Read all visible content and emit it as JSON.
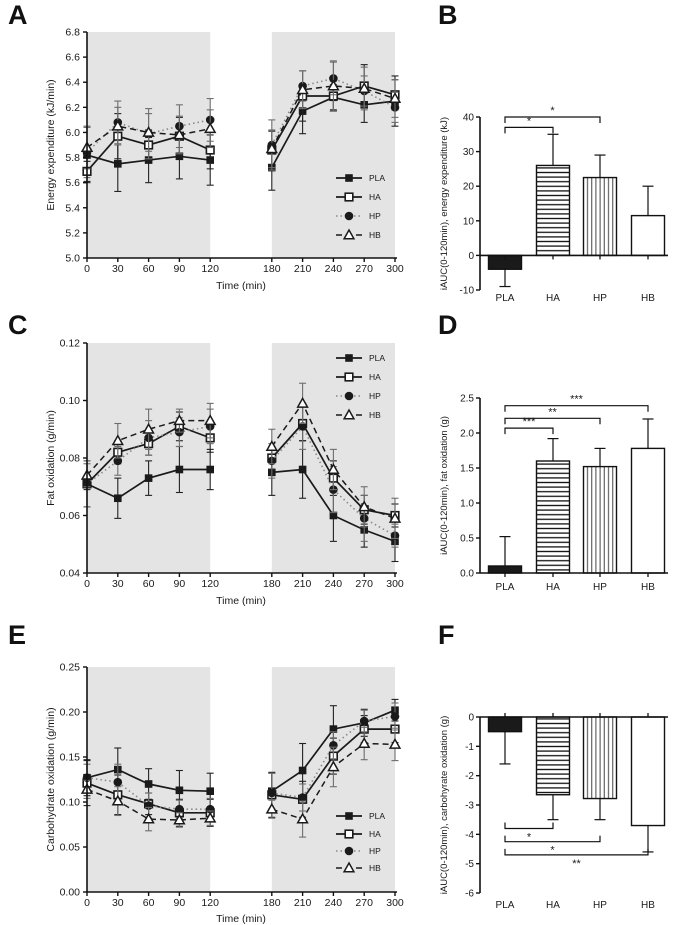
{
  "figure_title": "",
  "panel_letters": [
    "A",
    "B",
    "C",
    "D",
    "E",
    "F"
  ],
  "colors": {
    "line_black": "#1a1a1a",
    "line_gray": "#8a8a8a",
    "band_gray": "#e4e4e4",
    "bar_black": "#1a1a1a",
    "white": "#ffffff"
  },
  "chart_data": [
    {
      "panel": "A",
      "type": "line",
      "x": [
        0,
        30,
        60,
        90,
        120,
        180,
        210,
        240,
        270,
        300
      ],
      "xlabel": "Time (min)",
      "ylabel": "Energy expenditure (kJ/min)",
      "ylim": [
        5.0,
        6.8
      ],
      "ystep": 0.2,
      "ydecimals": 1,
      "shaded_bands": [
        [
          0,
          120
        ],
        [
          180,
          300
        ]
      ],
      "legend_pos": "bottom-right",
      "series": [
        {
          "name": "PLA",
          "marker": "filled-square",
          "line": "solid",
          "values": [
            5.82,
            5.75,
            5.78,
            5.81,
            5.78,
            5.72,
            6.17,
            6.28,
            6.22,
            6.25
          ],
          "err": [
            0.22,
            0.22,
            0.18,
            0.18,
            0.2,
            0.18,
            0.18,
            0.1,
            0.14,
            0.2
          ]
        },
        {
          "name": "HA",
          "marker": "open-square",
          "line": "solid",
          "values": [
            5.69,
            5.97,
            5.9,
            5.97,
            5.86,
            5.86,
            6.29,
            6.29,
            6.37,
            6.3
          ],
          "err": [
            0.08,
            0.18,
            0.12,
            0.15,
            0.15,
            0.15,
            0.2,
            0.12,
            0.17,
            0.12
          ]
        },
        {
          "name": "HP",
          "marker": "filled-circle",
          "line": "dotted",
          "values": [
            5.84,
            6.08,
            5.99,
            6.05,
            6.1,
            5.9,
            6.37,
            6.43,
            6.33,
            6.2
          ],
          "err": [
            0.2,
            0.17,
            0.2,
            0.17,
            0.17,
            0.2,
            0.12,
            0.13,
            0.12,
            0.12
          ]
        },
        {
          "name": "HB",
          "marker": "open-triangle",
          "line": "dashed",
          "values": [
            5.88,
            6.05,
            6.0,
            5.98,
            6.03,
            5.87,
            6.34,
            6.37,
            6.35,
            6.27
          ],
          "err": [
            0.17,
            0.15,
            0.15,
            0.15,
            0.15,
            0.15,
            0.15,
            0.2,
            0.17,
            0.15
          ]
        }
      ]
    },
    {
      "panel": "B",
      "type": "bar",
      "categories": [
        "PLA",
        "HA",
        "HP",
        "HB"
      ],
      "values": [
        -4,
        26,
        22.5,
        11.5
      ],
      "errors": [
        5,
        9,
        6.5,
        8.5
      ],
      "patterns": [
        "solid-black",
        "hlines",
        "vlines",
        "open"
      ],
      "ylabel": "iAUC(0-120min), energy expenditure (kJ)",
      "ylim": [
        -10,
        40
      ],
      "ystep": 10,
      "ydecimals": 0,
      "sig_side": "above",
      "sig_brackets": [
        {
          "a": 0,
          "b": 1,
          "y": 37,
          "label": "*"
        },
        {
          "a": 0,
          "b": 2,
          "y": 40,
          "label": "*"
        }
      ]
    },
    {
      "panel": "C",
      "type": "line",
      "x": [
        0,
        30,
        60,
        90,
        120,
        180,
        210,
        240,
        270,
        300
      ],
      "xlabel": "Time (min)",
      "ylabel": "Fat oxidation (g/min)",
      "ylim": [
        0.04,
        0.12
      ],
      "ystep": 0.02,
      "ydecimals": 2,
      "shaded_bands": [
        [
          0,
          120
        ],
        [
          180,
          300
        ]
      ],
      "legend_pos": "top-right",
      "series": [
        {
          "name": "PLA",
          "marker": "filled-square",
          "line": "solid",
          "values": [
            0.071,
            0.066,
            0.073,
            0.076,
            0.076,
            0.075,
            0.076,
            0.06,
            0.055,
            0.051
          ],
          "err": [
            0.008,
            0.007,
            0.006,
            0.008,
            0.007,
            0.008,
            0.01,
            0.009,
            0.006,
            0.007
          ]
        },
        {
          "name": "HA",
          "marker": "open-square",
          "line": "solid",
          "values": [
            0.071,
            0.082,
            0.085,
            0.091,
            0.087,
            0.08,
            0.092,
            0.073,
            0.062,
            0.06
          ],
          "err": [
            0.002,
            0.004,
            0.004,
            0.005,
            0.005,
            0.004,
            0.006,
            0.006,
            0.005,
            0.004
          ]
        },
        {
          "name": "HP",
          "marker": "filled-circle",
          "line": "dotted",
          "values": [
            0.071,
            0.079,
            0.087,
            0.089,
            0.091,
            0.079,
            0.091,
            0.069,
            0.059,
            0.053
          ],
          "err": [
            0.008,
            0.005,
            0.006,
            0.005,
            0.006,
            0.006,
            0.008,
            0.008,
            0.008,
            0.004
          ]
        },
        {
          "name": "HB",
          "marker": "open-triangle",
          "line": "dashed",
          "values": [
            0.074,
            0.086,
            0.09,
            0.093,
            0.093,
            0.084,
            0.099,
            0.076,
            0.063,
            0.059
          ],
          "err": [
            0.004,
            0.006,
            0.007,
            0.004,
            0.006,
            0.006,
            0.007,
            0.007,
            0.007,
            0.007
          ]
        }
      ]
    },
    {
      "panel": "D",
      "type": "bar",
      "categories": [
        "PLA",
        "HA",
        "HP",
        "HB"
      ],
      "values": [
        0.1,
        1.6,
        1.52,
        1.78
      ],
      "errors": [
        0.42,
        0.32,
        0.26,
        0.42
      ],
      "patterns": [
        "solid-black",
        "hlines",
        "vlines",
        "open"
      ],
      "ylabel": "iAUC(0-120min), fat oxidation (g)",
      "ylim": [
        0,
        2.5
      ],
      "ystep": 0.5,
      "ydecimals": 1,
      "sig_side": "above",
      "sig_brackets": [
        {
          "a": 0,
          "b": 1,
          "y": 2.07,
          "label": "***"
        },
        {
          "a": 0,
          "b": 2,
          "y": 2.21,
          "label": "**"
        },
        {
          "a": 0,
          "b": 3,
          "y": 2.39,
          "label": "***"
        }
      ]
    },
    {
      "panel": "E",
      "type": "line",
      "x": [
        0,
        30,
        60,
        90,
        120,
        180,
        210,
        240,
        270,
        300
      ],
      "xlabel": "Time (min)",
      "ylabel": "Carbohydrate oxidation (g/min)",
      "ylim": [
        0.0,
        0.25
      ],
      "ystep": 0.05,
      "ydecimals": 2,
      "shaded_bands": [
        [
          0,
          120
        ],
        [
          180,
          300
        ]
      ],
      "legend_pos": "bottom-right",
      "series": [
        {
          "name": "PLA",
          "marker": "filled-square",
          "line": "solid",
          "values": [
            0.127,
            0.136,
            0.12,
            0.113,
            0.112,
            0.112,
            0.135,
            0.181,
            0.188,
            0.202
          ],
          "err": [
            0.02,
            0.024,
            0.017,
            0.022,
            0.02,
            0.02,
            0.03,
            0.026,
            0.015,
            0.012
          ]
        },
        {
          "name": "HA",
          "marker": "open-square",
          "line": "solid",
          "values": [
            0.121,
            0.108,
            0.098,
            0.088,
            0.088,
            0.108,
            0.103,
            0.151,
            0.181,
            0.181
          ],
          "err": [
            0.025,
            0.022,
            0.012,
            0.015,
            0.015,
            0.025,
            0.02,
            0.02,
            0.015,
            0.015
          ]
        },
        {
          "name": "HP",
          "marker": "filled-circle",
          "line": "dotted",
          "values": [
            0.127,
            0.122,
            0.096,
            0.092,
            0.092,
            0.11,
            0.105,
            0.163,
            0.19,
            0.195
          ],
          "err": [
            0.015,
            0.02,
            0.014,
            0.01,
            0.012,
            0.022,
            0.015,
            0.015,
            0.012,
            0.015
          ]
        },
        {
          "name": "HB",
          "marker": "open-triangle",
          "line": "dashed",
          "values": [
            0.114,
            0.101,
            0.081,
            0.08,
            0.082,
            0.092,
            0.081,
            0.139,
            0.165,
            0.164
          ],
          "err": [
            0.01,
            0.016,
            0.013,
            0.008,
            0.008,
            0.01,
            0.02,
            0.022,
            0.018,
            0.018
          ]
        }
      ]
    },
    {
      "panel": "F",
      "type": "bar",
      "categories": [
        "PLA",
        "HA",
        "HP",
        "HB"
      ],
      "values": [
        -0.5,
        -2.65,
        -2.78,
        -3.7
      ],
      "errors": [
        1.1,
        0.85,
        0.72,
        0.9
      ],
      "patterns": [
        "solid-black",
        "hlines",
        "vlines",
        "open"
      ],
      "ylabel": "iAUC(0-120min), carbohyrate oxidation (g)",
      "ylim": [
        -6,
        0
      ],
      "ystep": 1,
      "ydecimals": 0,
      "sig_side": "below",
      "sig_brackets": [
        {
          "a": 0,
          "b": 1,
          "y": -3.8,
          "label": "*"
        },
        {
          "a": 0,
          "b": 2,
          "y": -4.25,
          "label": "*"
        },
        {
          "a": 0,
          "b": 3,
          "y": -4.7,
          "label": "**"
        }
      ]
    }
  ]
}
